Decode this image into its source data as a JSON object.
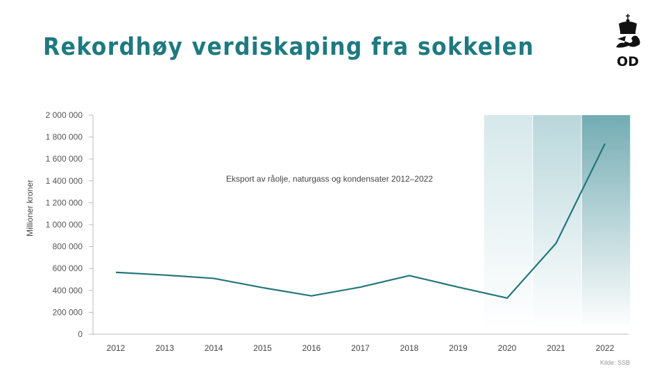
{
  "slide": {
    "title": "Rekordhøy verdiskaping fra sokkelen",
    "logo": {
      "icon": "crown-lion-icon",
      "text": "OD"
    },
    "source": "Kilde: SSB",
    "colors": {
      "title": "#1e7a80",
      "line": "#22757a",
      "band": "#6aa9b0"
    }
  },
  "chart_data": {
    "type": "line",
    "title": "",
    "annotation": "Eksport av råolje, naturgass og kondensater 2012–2022",
    "xlabel": "",
    "ylabel": "Millioner kroner",
    "categories": [
      "2012",
      "2013",
      "2014",
      "2015",
      "2016",
      "2017",
      "2018",
      "2019",
      "2020",
      "2021",
      "2022"
    ],
    "series": [
      {
        "name": "Eksport av råolje, naturgass og kondensater",
        "values": [
          565000,
          540000,
          510000,
          425000,
          350000,
          430000,
          535000,
          430000,
          330000,
          830000,
          1740000
        ]
      }
    ],
    "ylim": [
      0,
      2000000
    ],
    "yticks": [
      0,
      200000,
      400000,
      600000,
      800000,
      1000000,
      1200000,
      1400000,
      1600000,
      1800000,
      2000000
    ],
    "ytick_labels": [
      "0",
      "200 000",
      "400 000",
      "600 000",
      "800 000",
      "1 000 000",
      "1 200 000",
      "1 400 000",
      "1 600 000",
      "1 800 000",
      "2 000 000"
    ],
    "highlighted_years": [
      "2020",
      "2021",
      "2022"
    ],
    "grid": false,
    "legend": "none"
  }
}
